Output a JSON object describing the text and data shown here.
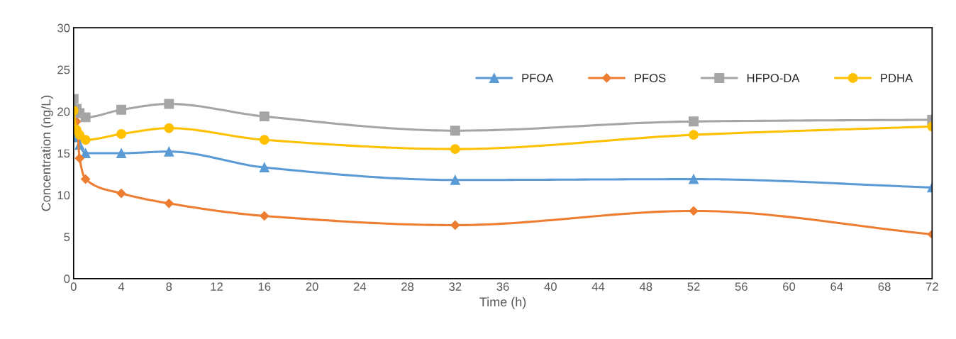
{
  "chart_data": {
    "type": "line",
    "xlabel": "Time (h)",
    "ylabel": "Concentration (ng/L)",
    "x": [
      0,
      0.25,
      0.5,
      1,
      4,
      8,
      16,
      32,
      52,
      72
    ],
    "series": [
      {
        "name": "PFOA",
        "color": "#5b9bd5",
        "marker": "triangle",
        "values": [
          17.2,
          16.9,
          16.0,
          15.0,
          15.0,
          15.2,
          13.3,
          11.8,
          11.9,
          10.9
        ]
      },
      {
        "name": "PFOS",
        "color": "#ed7d31",
        "marker": "diamond",
        "values": [
          19.0,
          18.8,
          14.4,
          11.9,
          10.2,
          9.0,
          7.5,
          6.4,
          8.1,
          5.3
        ]
      },
      {
        "name": "HFPO-DA",
        "color": "#a5a5a5",
        "marker": "square",
        "values": [
          21.5,
          20.3,
          19.8,
          19.3,
          20.2,
          20.9,
          19.4,
          17.7,
          18.8,
          19.0
        ]
      },
      {
        "name": "PDHA",
        "color": "#ffc000",
        "marker": "circle",
        "values": [
          20.1,
          17.8,
          17.2,
          16.6,
          17.3,
          18.0,
          16.6,
          15.5,
          17.2,
          18.2
        ]
      }
    ],
    "xlim": [
      0,
      72
    ],
    "xticks": [
      0,
      4,
      8,
      12,
      16,
      20,
      24,
      28,
      32,
      36,
      40,
      44,
      48,
      52,
      56,
      60,
      64,
      68,
      72
    ],
    "ylim": [
      0,
      30
    ],
    "yticks": [
      0,
      5,
      10,
      15,
      20,
      25,
      30
    ],
    "grid": false,
    "legend": "top right",
    "line_style": "solid"
  }
}
